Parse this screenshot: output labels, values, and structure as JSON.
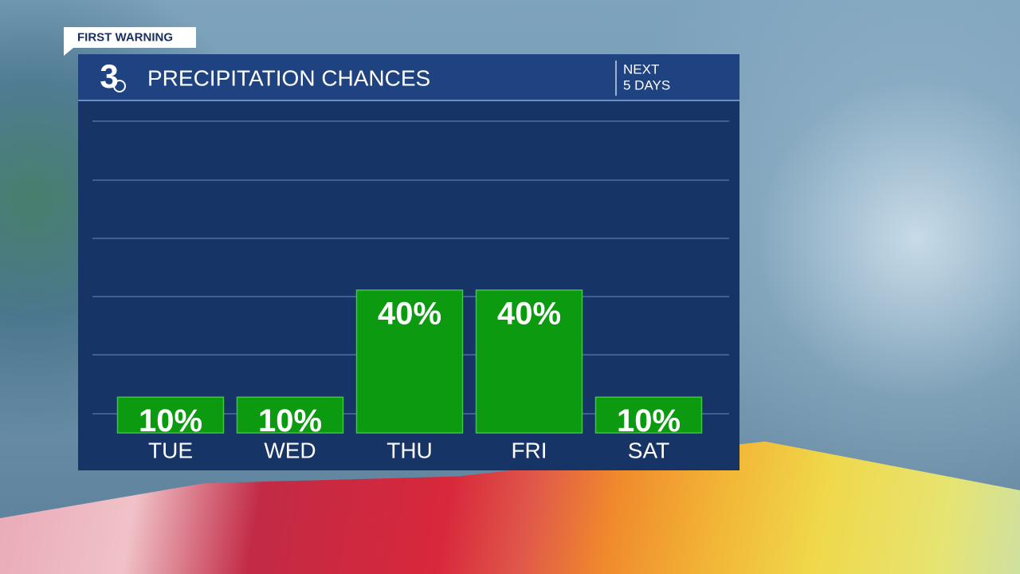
{
  "banner": "FIRST WARNING",
  "logo": "3",
  "chart_data": {
    "type": "bar",
    "title": "PRECIPITATION CHANCES",
    "period": [
      "NEXT",
      "5 DAYS"
    ],
    "categories": [
      "TUE",
      "WED",
      "THU",
      "FRI",
      "SAT"
    ],
    "values": [
      10,
      10,
      40,
      40,
      10
    ],
    "value_labels": [
      "10%",
      "10%",
      "40%",
      "40%",
      "10%"
    ],
    "color": "#0b9a10",
    "ylim": [
      0,
      90
    ]
  }
}
